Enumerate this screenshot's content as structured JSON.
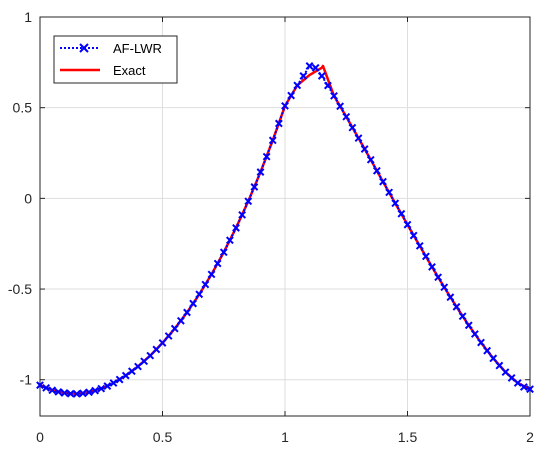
{
  "chart_data": {
    "type": "line",
    "xlim": [
      0,
      2
    ],
    "ylim": [
      -1.2,
      1
    ],
    "grid": true,
    "legend_position": "top-left",
    "x_ticks": [
      0,
      0.5,
      1,
      1.5,
      2
    ],
    "x_tick_labels": [
      "0",
      "0.5",
      "1",
      "1.5",
      "2"
    ],
    "y_ticks": [
      -1,
      -0.5,
      0,
      0.5,
      1
    ],
    "y_tick_labels": [
      "-1",
      "-0.5",
      "0",
      "0.5",
      "1"
    ],
    "x": [
      0,
      0.05,
      0.1,
      0.15,
      0.2,
      0.25,
      0.3,
      0.35,
      0.4,
      0.45,
      0.5,
      0.55,
      0.6,
      0.65,
      0.7,
      0.75,
      0.8,
      0.85,
      0.9,
      0.95,
      1.0,
      1.05,
      1.1,
      1.15,
      1.2,
      1.25,
      1.3,
      1.35,
      1.4,
      1.45,
      1.5,
      1.55,
      1.6,
      1.65,
      1.7,
      1.75,
      1.8,
      1.85,
      1.9,
      1.95,
      2.0
    ],
    "series": [
      {
        "name": "AF-LWR",
        "color": "#0000ff",
        "line_style": "dotted",
        "marker": "x",
        "marker_x": [
          0,
          0.025,
          0.05,
          0.075,
          0.1,
          0.125,
          0.15,
          0.175,
          0.2,
          0.225,
          0.25,
          0.275,
          0.3,
          0.325,
          0.35,
          0.375,
          0.4,
          0.425,
          0.45,
          0.475,
          0.5,
          0.525,
          0.55,
          0.575,
          0.6,
          0.625,
          0.65,
          0.675,
          0.7,
          0.725,
          0.75,
          0.775,
          0.8,
          0.825,
          0.85,
          0.875,
          0.9,
          0.925,
          0.95,
          0.975,
          1.0,
          1.025,
          1.05,
          1.075,
          1.1,
          1.125,
          1.15,
          1.175,
          1.2,
          1.225,
          1.25,
          1.275,
          1.3,
          1.325,
          1.35,
          1.375,
          1.4,
          1.425,
          1.45,
          1.475,
          1.5,
          1.525,
          1.55,
          1.575,
          1.6,
          1.625,
          1.65,
          1.675,
          1.7,
          1.725,
          1.75,
          1.775,
          1.8,
          1.825,
          1.85,
          1.875,
          1.9,
          1.925,
          1.95,
          1.975,
          2.0
        ],
        "marker_y": [
          -1.03,
          -1.045,
          -1.058,
          -1.067,
          -1.073,
          -1.077,
          -1.078,
          -1.075,
          -1.069,
          -1.06,
          -1.049,
          -1.035,
          -1.018,
          -0.999,
          -0.977,
          -0.953,
          -0.927,
          -0.898,
          -0.867,
          -0.833,
          -0.797,
          -0.759,
          -0.718,
          -0.675,
          -0.629,
          -0.58,
          -0.529,
          -0.475,
          -0.419,
          -0.359,
          -0.297,
          -0.231,
          -0.163,
          -0.091,
          -0.016,
          0.063,
          0.145,
          0.23,
          0.32,
          0.413,
          0.51,
          0.567,
          0.623,
          0.675,
          0.73,
          0.72,
          0.675,
          0.622,
          0.565,
          0.508,
          0.45,
          0.39,
          0.332,
          0.272,
          0.213,
          0.152,
          0.092,
          0.033,
          -0.027,
          -0.085,
          -0.145,
          -0.205,
          -0.262,
          -0.32,
          -0.378,
          -0.435,
          -0.49,
          -0.545,
          -0.598,
          -0.65,
          -0.7,
          -0.748,
          -0.795,
          -0.84,
          -0.882,
          -0.922,
          -0.958,
          -0.99,
          -1.018,
          -1.04,
          -1.052
        ]
      },
      {
        "name": "Exact",
        "color": "#ff0000",
        "line_style": "solid",
        "y": [
          -1.03,
          -1.058,
          -1.073,
          -1.078,
          -1.069,
          -1.049,
          -1.018,
          -0.977,
          -0.927,
          -0.867,
          -0.797,
          -0.718,
          -0.629,
          -0.529,
          -0.419,
          -0.297,
          -0.163,
          -0.016,
          0.145,
          0.32,
          0.51,
          0.623,
          0.68,
          0.72,
          0.565,
          0.45,
          0.332,
          0.213,
          0.092,
          -0.027,
          -0.145,
          -0.262,
          -0.378,
          -0.49,
          -0.598,
          -0.7,
          -0.795,
          -0.882,
          -0.958,
          -1.018,
          -1.052
        ]
      }
    ],
    "peak": {
      "x": 1.155,
      "y": 0.73
    }
  }
}
